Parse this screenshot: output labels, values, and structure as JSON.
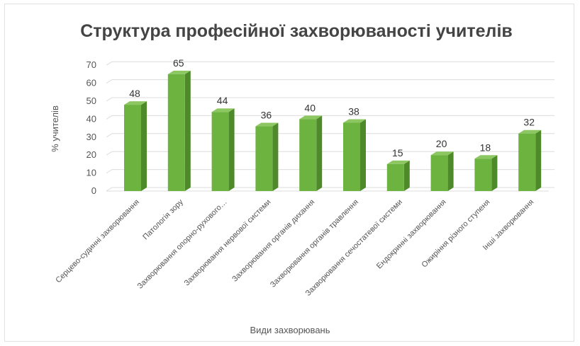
{
  "chart_data": {
    "type": "bar",
    "title": "Структура професійної захворюваності учителів",
    "xlabel": "Види захворювань",
    "ylabel": "% учителів",
    "ylim": [
      0,
      70
    ],
    "yticks": [
      0,
      10,
      20,
      30,
      40,
      50,
      60,
      70
    ],
    "grid": true,
    "categories": [
      "Серцево-судинні захворювання",
      "Патологія зору",
      "Захворювання опорно-рухового…",
      "Захворювання нервової системи",
      "Захворювання органів дихання",
      "Захворювання органів травлення",
      "Захворювання сечостатевої системи",
      "Ендокринні захворювання",
      "Ожиріння різного ступеня",
      "Інші захворювання"
    ],
    "values": [
      48,
      65,
      44,
      36,
      40,
      38,
      15,
      20,
      18,
      32
    ],
    "colors": {
      "bar_front": "#6db33f",
      "bar_side": "#4e8a2a",
      "bar_top": "#8cc762"
    }
  }
}
